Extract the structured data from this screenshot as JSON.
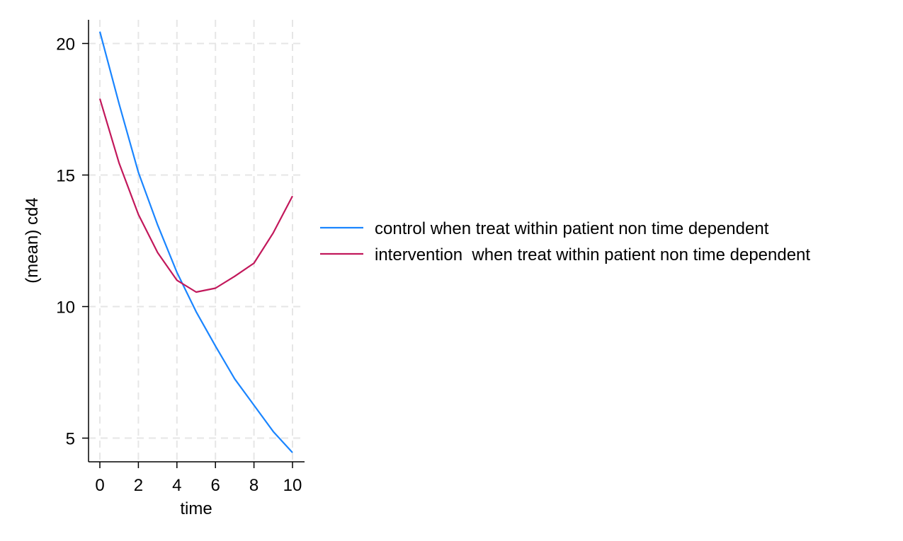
{
  "chart_data": {
    "type": "line",
    "title": "",
    "xlabel": "time",
    "ylabel": "(mean) cd4",
    "x": [
      0,
      1,
      2,
      3,
      4,
      5,
      6,
      7,
      8,
      9,
      10
    ],
    "xticks": [
      0,
      2,
      4,
      6,
      8,
      10
    ],
    "yticks": [
      5,
      10,
      15,
      20
    ],
    "xlim": [
      0,
      10
    ],
    "ylim": [
      4.1,
      20.9
    ],
    "grid": true,
    "legend_position": "right",
    "series": [
      {
        "name": "control when treat within patient non time dependent",
        "color": "#1a85ff",
        "values": [
          20.45,
          17.7,
          15.1,
          13.1,
          11.3,
          9.8,
          8.5,
          7.25,
          6.25,
          5.25,
          4.45
        ]
      },
      {
        "name": "intervention  when treat within patient non time dependent",
        "color": "#c2185b",
        "values": [
          17.9,
          15.45,
          13.5,
          12.05,
          11.0,
          10.55,
          10.7,
          11.15,
          11.65,
          12.8,
          14.2
        ]
      }
    ]
  }
}
